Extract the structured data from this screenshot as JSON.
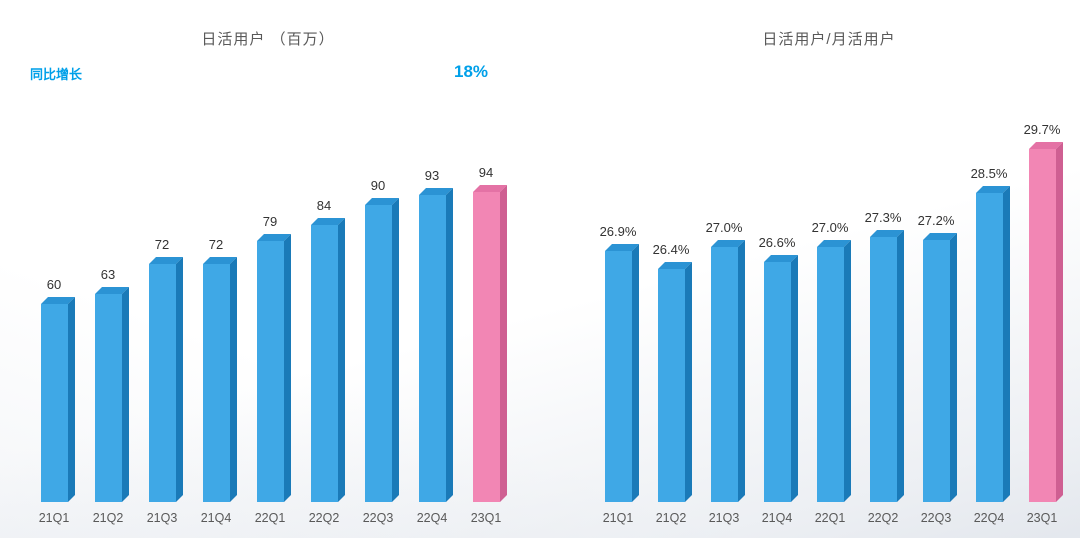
{
  "colors": {
    "bar_face_blue": "#3fa8e6",
    "bar_side_blue": "#1a7ab8",
    "bar_top_blue": "#2b93d4",
    "bar_face_pink": "#f286b4",
    "bar_side_pink": "#cf5f92",
    "bar_top_pink": "#e472a5",
    "annotation_blue": "#00a0e9",
    "title_gray": "#595959",
    "value_label": "#333333"
  },
  "chart_data": [
    {
      "type": "bar",
      "title": "日活用户 （百万）",
      "categories": [
        "21Q1",
        "21Q2",
        "21Q3",
        "21Q4",
        "22Q1",
        "22Q2",
        "22Q3",
        "22Q4",
        "23Q1"
      ],
      "values": [
        60,
        63,
        72,
        72,
        79,
        84,
        90,
        93,
        94
      ],
      "data_labels": [
        "60",
        "63",
        "72",
        "72",
        "79",
        "84",
        "90",
        "93",
        "94"
      ],
      "ylim": [
        0,
        100
      ],
      "highlight_index": 8,
      "legend": "none",
      "grid": false,
      "annotations": [
        {
          "text": "同比增长",
          "color": "#00a0e9"
        },
        {
          "text": "18%",
          "color": "#00a0e9"
        }
      ]
    },
    {
      "type": "bar",
      "title": "日活用户/月活用户",
      "categories": [
        "21Q1",
        "21Q2",
        "21Q3",
        "21Q4",
        "22Q1",
        "22Q2",
        "22Q3",
        "22Q4",
        "23Q1"
      ],
      "values": [
        26.9,
        26.4,
        27.0,
        26.6,
        27.0,
        27.3,
        27.2,
        28.5,
        29.7
      ],
      "data_labels": [
        "26.9%",
        "26.4%",
        "27.0%",
        "26.6%",
        "27.0%",
        "27.3%",
        "27.2%",
        "28.5%",
        "29.7%"
      ],
      "ylim": [
        20,
        31
      ],
      "highlight_index": 8,
      "legend": "none",
      "grid": false,
      "annotations": []
    }
  ]
}
